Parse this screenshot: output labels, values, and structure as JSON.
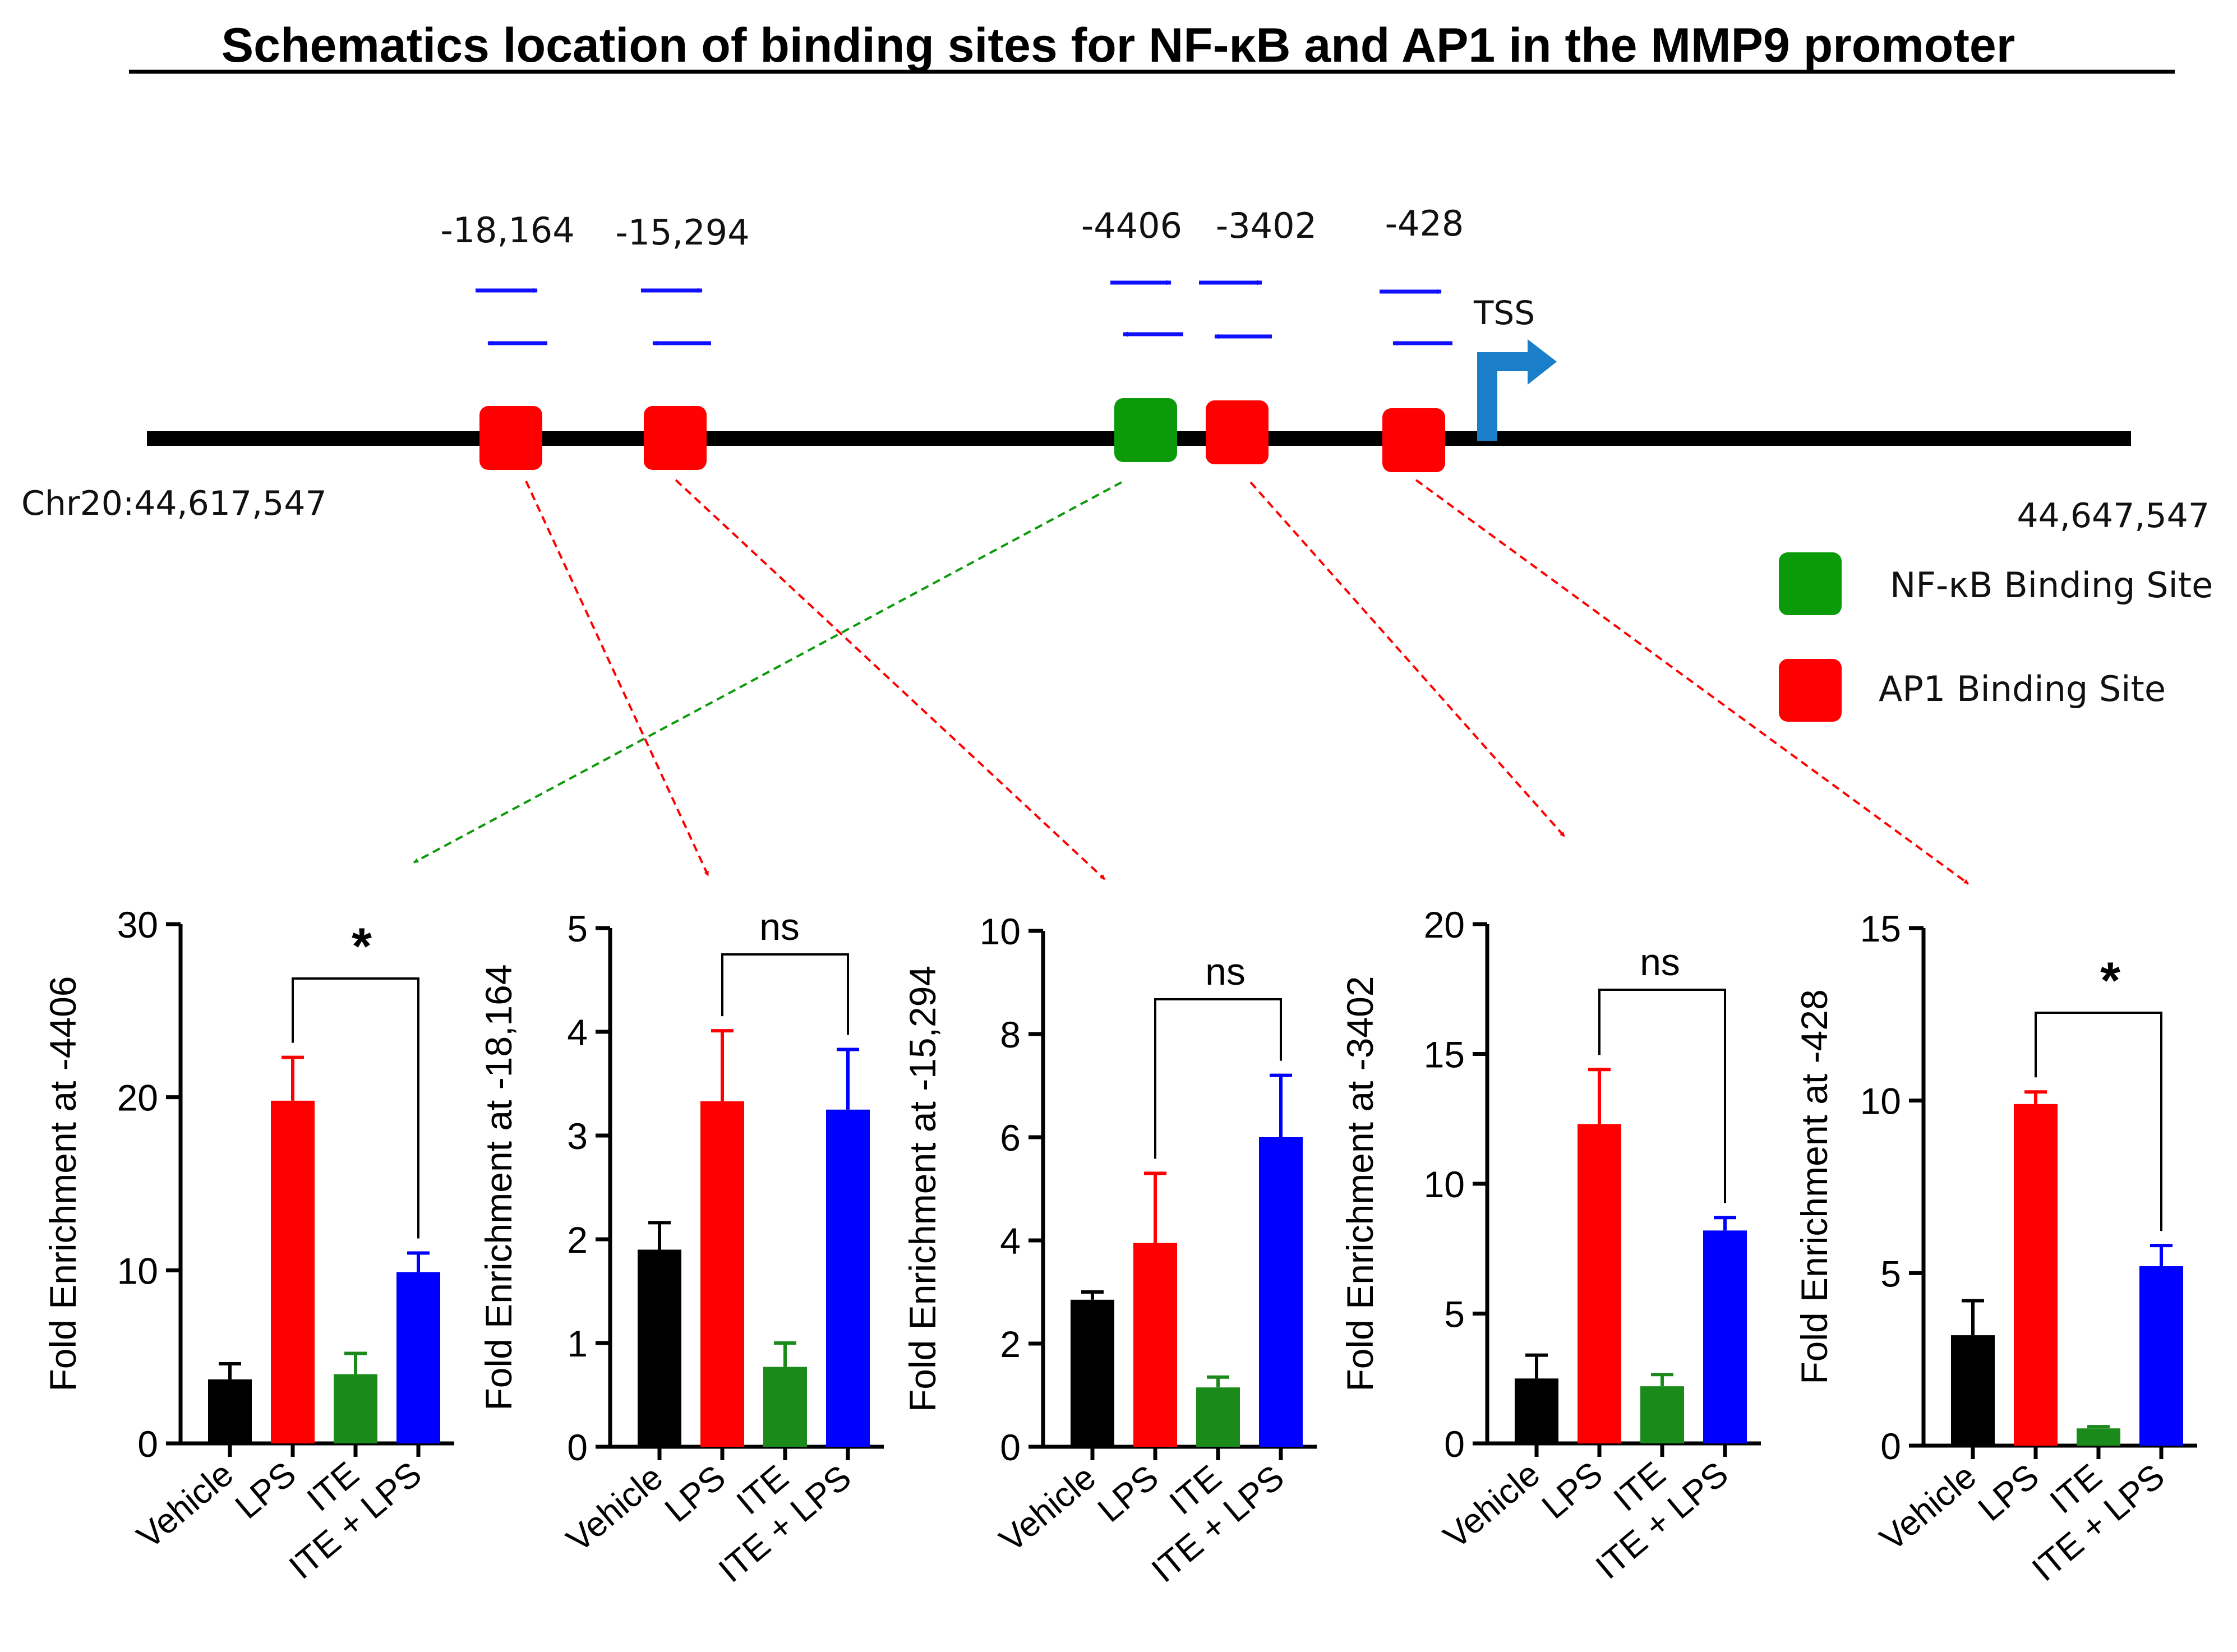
{
  "title": "Schematics location of binding sites for NF-κB and AP1 in the  MMP9 promoter",
  "schematic": {
    "chr_start": "Chr20:44,617,547",
    "chr_end": "44,647,547",
    "tss_label": "TSS",
    "positions": [
      "-18,164",
      "-15,294",
      "-4406",
      "-3402",
      "-428"
    ],
    "legend": [
      {
        "label": "NF-κB Binding Site",
        "color": "#0a9a0a"
      },
      {
        "label": "AP1 Binding Site",
        "color": "#ff0000"
      }
    ],
    "colors": {
      "ap1": "#ff0000",
      "nfkb": "#0a9a0a",
      "arrow": "#1010ff",
      "tss": "#1a7fc8"
    }
  },
  "chart_data": [
    {
      "type": "bar",
      "title": "",
      "ylabel": "Fold Enrichment at -4406",
      "categories": [
        "Vehicle",
        "LPS",
        "ITE",
        "ITE + LPS"
      ],
      "values": [
        3.7,
        19.8,
        4.0,
        9.9
      ],
      "errors": [
        0.9,
        2.5,
        1.2,
        1.1
      ],
      "colors": [
        "#000000",
        "#ff0000",
        "#1a8a1a",
        "#0000ff"
      ],
      "ylim": [
        0,
        30
      ],
      "yticks": [
        "0",
        "10",
        "20",
        "30"
      ],
      "significance": "*"
    },
    {
      "type": "bar",
      "title": "",
      "ylabel": "Fold Enrichment at -18,164",
      "categories": [
        "Vehicle",
        "LPS",
        "ITE",
        "ITE + LPS"
      ],
      "values": [
        1.9,
        3.33,
        0.77,
        3.25
      ],
      "errors": [
        0.26,
        0.68,
        0.23,
        0.58
      ],
      "colors": [
        "#000000",
        "#ff0000",
        "#1a8a1a",
        "#0000ff"
      ],
      "ylim": [
        0,
        5
      ],
      "yticks": [
        "0",
        "1",
        "2",
        "3",
        "4",
        "5"
      ],
      "significance": "ns"
    },
    {
      "type": "bar",
      "title": "",
      "ylabel": "Fold Enrichment at -15,294",
      "categories": [
        "Vehicle",
        "LPS",
        "ITE",
        "ITE + LPS"
      ],
      "values": [
        2.85,
        3.95,
        1.15,
        6.0
      ],
      "errors": [
        0.15,
        1.35,
        0.2,
        1.2
      ],
      "colors": [
        "#000000",
        "#ff0000",
        "#1a8a1a",
        "#0000ff"
      ],
      "ylim": [
        0,
        10
      ],
      "yticks": [
        "0",
        "2",
        "4",
        "6",
        "8",
        "10"
      ],
      "significance": "ns"
    },
    {
      "type": "bar",
      "title": "",
      "ylabel": "Fold Enrichment at -3402",
      "categories": [
        "Vehicle",
        "LPS",
        "ITE",
        "ITE + LPS"
      ],
      "values": [
        2.5,
        12.3,
        2.2,
        8.2
      ],
      "errors": [
        0.9,
        2.1,
        0.45,
        0.5
      ],
      "colors": [
        "#000000",
        "#ff0000",
        "#1a8a1a",
        "#0000ff"
      ],
      "ylim": [
        0,
        20
      ],
      "yticks": [
        "0",
        "5",
        "10",
        "15",
        "20"
      ],
      "significance": "ns"
    },
    {
      "type": "bar",
      "title": "",
      "ylabel": "Fold Enrichment at -428",
      "categories": [
        "Vehicle",
        "LPS",
        "ITE",
        "ITE + LPS"
      ],
      "values": [
        3.2,
        9.9,
        0.5,
        5.2
      ],
      "errors": [
        1.0,
        0.35,
        0.05,
        0.6
      ],
      "colors": [
        "#000000",
        "#ff0000",
        "#1a8a1a",
        "#0000ff"
      ],
      "ylim": [
        0,
        15
      ],
      "yticks": [
        "0",
        "5",
        "10",
        "15"
      ],
      "significance": "*"
    }
  ]
}
